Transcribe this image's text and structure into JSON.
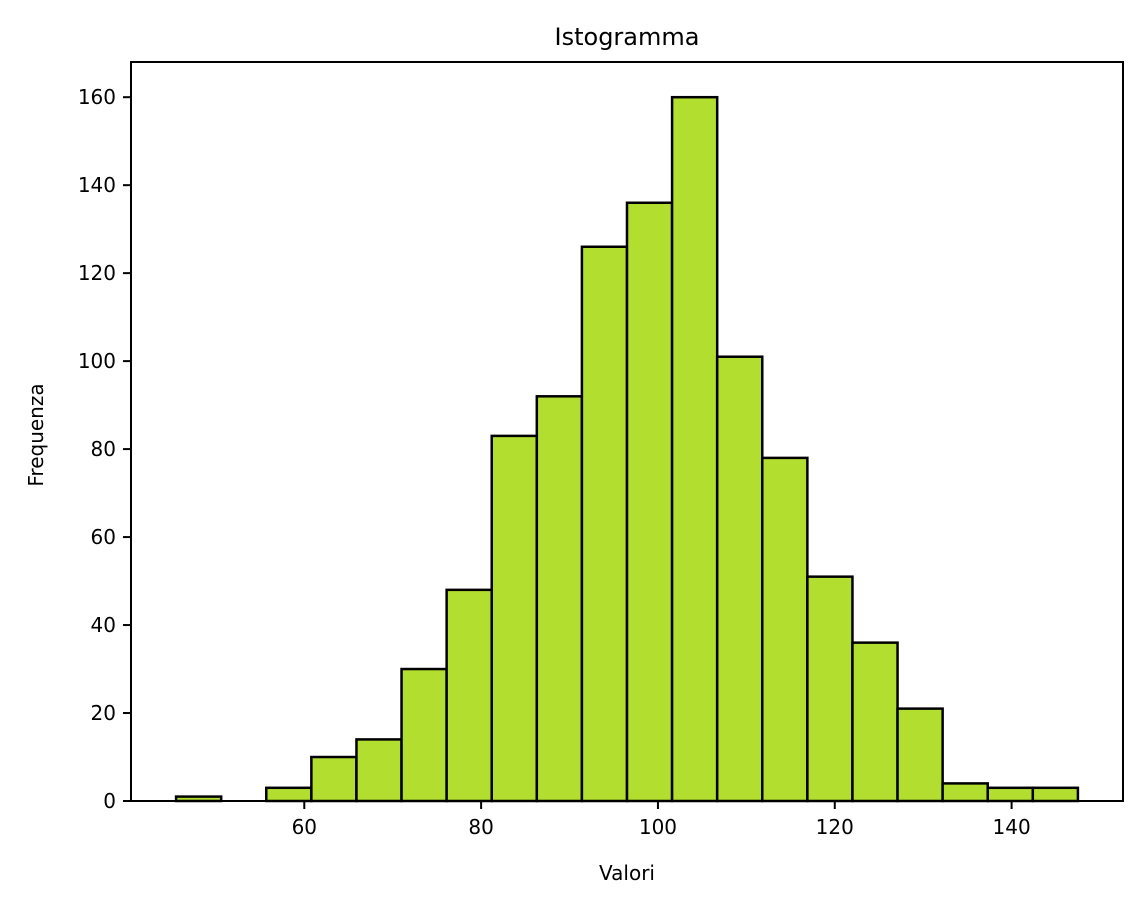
{
  "chart_data": {
    "type": "bar",
    "title": "Istogramma",
    "xlabel": "Valori",
    "ylabel": "Frequenza",
    "bin_edges": [
      45.5,
      50.6,
      55.7,
      60.8,
      65.9,
      71.0,
      76.1,
      81.2,
      86.3,
      91.4,
      96.5,
      101.6,
      106.7,
      111.8,
      116.9,
      122.0,
      127.1,
      132.2,
      137.3,
      142.4,
      147.5
    ],
    "values": [
      1,
      0,
      3,
      10,
      14,
      30,
      48,
      83,
      92,
      126,
      136,
      160,
      101,
      78,
      51,
      36,
      21,
      4,
      3,
      3
    ],
    "xlim": [
      40.4,
      152.6
    ],
    "ylim": [
      0,
      168
    ],
    "xticks": [
      60,
      80,
      100,
      120,
      140
    ],
    "yticks": [
      0,
      20,
      40,
      60,
      80,
      100,
      120,
      140,
      160
    ],
    "bar_color": "#b2df2f",
    "edge_color": "#000000",
    "grid": false,
    "legend": false
  }
}
